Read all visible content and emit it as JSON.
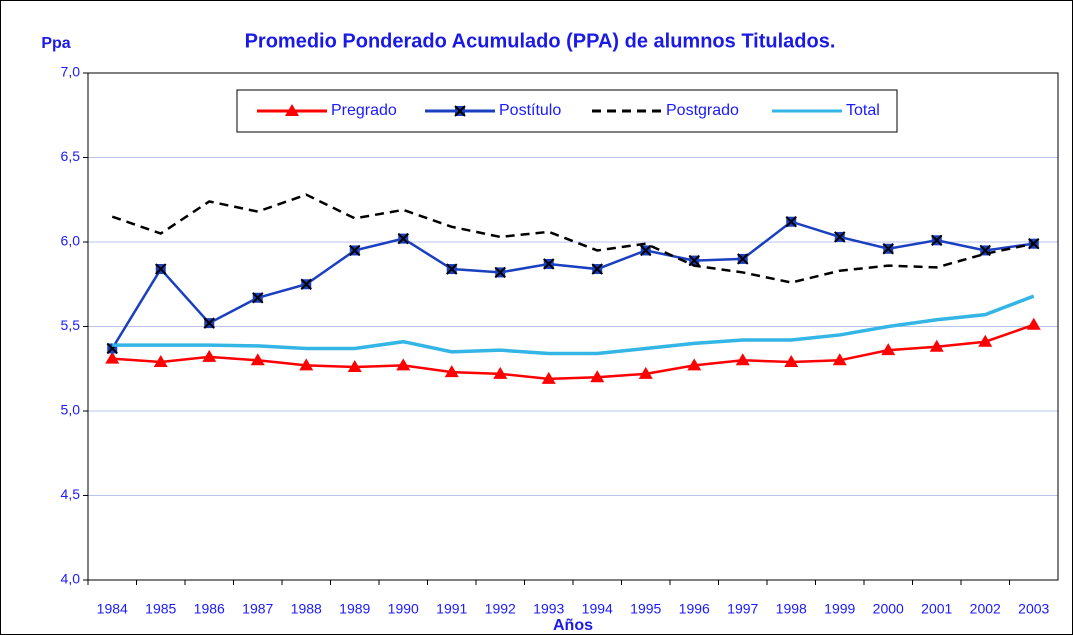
{
  "chart_data": {
    "type": "line",
    "title": "Promedio Ponderado Acumulado (PPA) de alumnos Titulados.",
    "y_label": "Ppa",
    "x_label": "Años",
    "categories": [
      "1984",
      "1985",
      "1986",
      "1987",
      "1988",
      "1989",
      "1990",
      "1991",
      "1992",
      "1993",
      "1994",
      "1995",
      "1996",
      "1997",
      "1998",
      "1999",
      "2000",
      "2001",
      "2002",
      "2003"
    ],
    "series": [
      {
        "name": "Pregrado",
        "color": "#ff0000",
        "marker": "triangle",
        "dash": "solid",
        "values": [
          5.31,
          5.29,
          5.32,
          5.3,
          5.27,
          5.26,
          5.27,
          5.23,
          5.22,
          5.19,
          5.2,
          5.22,
          5.27,
          5.3,
          5.29,
          5.3,
          5.36,
          5.38,
          5.41,
          5.51
        ]
      },
      {
        "name": "Postítulo",
        "color": "#1a3fbf",
        "marker": "square-x",
        "dash": "solid",
        "values": [
          5.37,
          5.84,
          5.52,
          5.67,
          5.75,
          5.95,
          6.02,
          5.84,
          5.82,
          5.87,
          5.84,
          5.95,
          5.89,
          5.9,
          6.12,
          6.03,
          5.96,
          6.01,
          5.95,
          5.99
        ]
      },
      {
        "name": "Postgrado",
        "color": "#000000",
        "marker": "none",
        "dash": "dashed",
        "values": [
          6.15,
          6.05,
          6.24,
          6.18,
          6.28,
          6.14,
          6.19,
          6.09,
          6.03,
          6.06,
          5.95,
          5.99,
          5.86,
          5.82,
          5.76,
          5.83,
          5.86,
          5.85,
          5.93,
          5.99
        ]
      },
      {
        "name": "Total",
        "color": "#33b5e5",
        "marker": "none",
        "dash": "solid",
        "values": [
          5.39,
          5.39,
          5.39,
          5.385,
          5.37,
          5.37,
          5.41,
          5.35,
          5.36,
          5.34,
          5.34,
          5.37,
          5.4,
          5.42,
          5.42,
          5.45,
          5.5,
          5.54,
          5.57,
          5.68
        ]
      }
    ],
    "ylim": [
      4,
      7
    ],
    "yticks": [
      {
        "value": 4,
        "label": "4,0"
      },
      {
        "value": 4.5,
        "label": "4,5"
      },
      {
        "value": 5,
        "label": "5,0"
      },
      {
        "value": 5.5,
        "label": "5,5"
      },
      {
        "value": 6,
        "label": "6,0"
      },
      {
        "value": 6.5,
        "label": "6,5"
      },
      {
        "value": 7,
        "label": "7,0"
      }
    ],
    "grid": true,
    "legend": "top"
  }
}
